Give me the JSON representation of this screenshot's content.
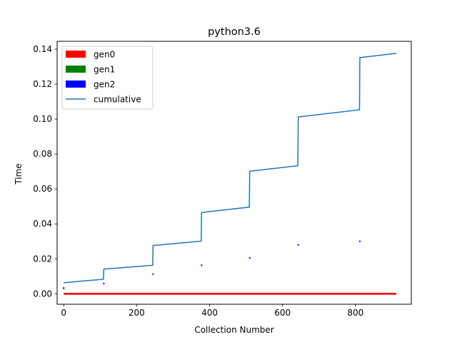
{
  "chart_data": {
    "type": "line",
    "title": "python3.6",
    "xlabel": "Collection Number",
    "ylabel": "Time",
    "xlim": [
      -18,
      953
    ],
    "ylim": [
      -0.006,
      0.1445
    ],
    "xticks": [
      0,
      200,
      400,
      600,
      800
    ],
    "xtick_labels": [
      "0",
      "200",
      "400",
      "600",
      "800"
    ],
    "yticks": [
      0.0,
      0.02,
      0.04,
      0.06,
      0.08,
      0.1,
      0.12,
      0.14
    ],
    "ytick_labels": [
      "0.00",
      "0.02",
      "0.04",
      "0.06",
      "0.08",
      "0.10",
      "0.12",
      "0.14"
    ],
    "grid": false,
    "legend_position": "top-left",
    "series": [
      {
        "name": "gen0",
        "kind": "bar",
        "color": "#ff0000",
        "x_range": [
          0,
          912
        ],
        "value": 0.0
      },
      {
        "name": "gen1",
        "kind": "bar",
        "color": "#008000",
        "x": [
          0
        ],
        "values": [
          0.0035
        ]
      },
      {
        "name": "gen2",
        "kind": "bar",
        "color": "#0000ff",
        "x": [
          0,
          110,
          245,
          378,
          510,
          643,
          812
        ],
        "values": [
          0.0033,
          0.0058,
          0.0112,
          0.0163,
          0.0205,
          0.028,
          0.03
        ]
      },
      {
        "name": "cumulative",
        "kind": "line",
        "color": "#1f77b4",
        "x": [
          0,
          109,
          110,
          244,
          245,
          377,
          378,
          509,
          510,
          642,
          643,
          811,
          812,
          912
        ],
        "values": [
          0.0063,
          0.0083,
          0.0141,
          0.0163,
          0.0276,
          0.0301,
          0.0465,
          0.0496,
          0.0701,
          0.0733,
          0.1012,
          0.1053,
          0.1352,
          0.1376
        ]
      }
    ]
  }
}
